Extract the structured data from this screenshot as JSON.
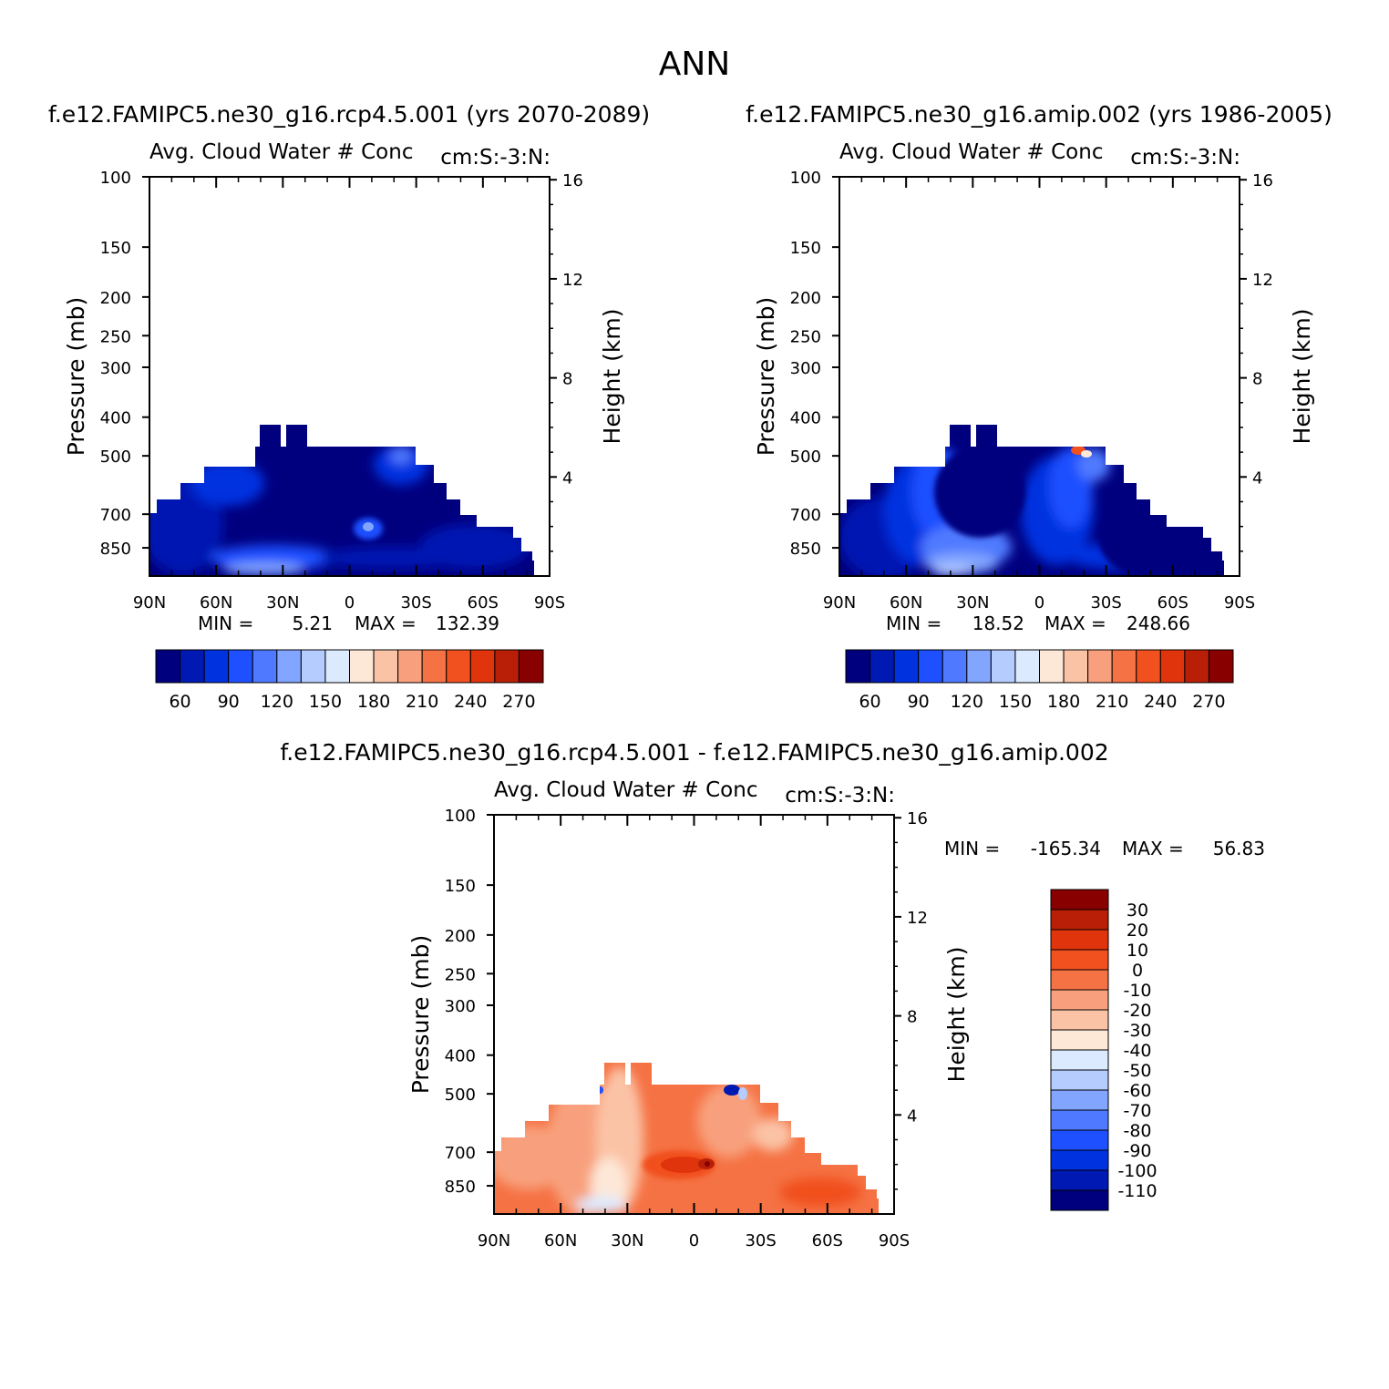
{
  "chart_data": {
    "type": "contour",
    "title": "ANN",
    "colors": {
      "abs": [
        "#00007f",
        "#0019b2",
        "#0032e0",
        "#1e50ff",
        "#4f7aff",
        "#82a5ff",
        "#b5ccff",
        "#dceaff",
        "#fde8d8",
        "#fbc3a6",
        "#f8a07d",
        "#f57244",
        "#f1501f",
        "#e0340d",
        "#b81f06",
        "#880000"
      ],
      "diff": [
        "#00007f",
        "#0019b2",
        "#0032e0",
        "#1e50ff",
        "#4f7aff",
        "#82a5ff",
        "#b5ccff",
        "#dceaff",
        "#fde8d8",
        "#fbc3a6",
        "#f8a07d",
        "#f57244",
        "#f1501f",
        "#e0340d",
        "#b81f06",
        "#880000"
      ]
    },
    "panels": [
      {
        "id": "model",
        "title": "f.e12.FAMIPC5.ne30_g16.rcp4.5.001 (yrs 2070-2089)",
        "left_label": "Avg. Cloud Water # Conc",
        "right_label": "cm:S:-3:N:",
        "ylabel": "Pressure (mb)",
        "y2label": "Height (km)",
        "pressure_ticks": [
          100,
          150,
          200,
          250,
          300,
          400,
          500,
          700,
          850
        ],
        "height_ticks": [
          16,
          12,
          8,
          4
        ],
        "x_ticks": [
          "90N",
          "60N",
          "30N",
          "0",
          "30S",
          "60S",
          "90S"
        ],
        "min_label": "MIN =",
        "min_value": "5.21",
        "max_label": "MAX =",
        "max_value": "132.39",
        "colorbar_labels": [
          "60",
          "90",
          "120",
          "150",
          "180",
          "210",
          "240",
          "270"
        ]
      },
      {
        "id": "obs",
        "title": "f.e12.FAMIPC5.ne30_g16.amip.002 (yrs 1986-2005)",
        "left_label": "Avg. Cloud Water # Conc",
        "right_label": "cm:S:-3:N:",
        "ylabel": "Pressure (mb)",
        "y2label": "Height (km)",
        "pressure_ticks": [
          100,
          150,
          200,
          250,
          300,
          400,
          500,
          700,
          850
        ],
        "height_ticks": [
          16,
          12,
          8,
          4
        ],
        "x_ticks": [
          "90N",
          "60N",
          "30N",
          "0",
          "30S",
          "60S",
          "90S"
        ],
        "min_label": "MIN =",
        "min_value": "18.52",
        "max_label": "MAX =",
        "max_value": "248.66",
        "colorbar_labels": [
          "60",
          "90",
          "120",
          "150",
          "180",
          "210",
          "240",
          "270"
        ]
      },
      {
        "id": "diff",
        "title": "f.e12.FAMIPC5.ne30_g16.rcp4.5.001 - f.e12.FAMIPC5.ne30_g16.amip.002",
        "left_label": "Avg. Cloud Water # Conc",
        "right_label": "cm:S:-3:N:",
        "ylabel": "Pressure (mb)",
        "y2label": "Height (km)",
        "pressure_ticks": [
          100,
          150,
          200,
          250,
          300,
          400,
          500,
          700,
          850
        ],
        "height_ticks": [
          16,
          12,
          8,
          4
        ],
        "x_ticks": [
          "90N",
          "60N",
          "30N",
          "0",
          "30S",
          "60S",
          "90S"
        ],
        "min_label": "MIN =",
        "min_value": "-165.34",
        "max_label": "MAX =",
        "max_value": "56.83",
        "colorbar_labels": [
          "30",
          "20",
          "10",
          "0",
          "-10",
          "-20",
          "-30",
          "-40",
          "-50",
          "-60",
          "-70",
          "-80",
          "-90",
          "-100",
          "-110"
        ]
      }
    ],
    "pressure_range_mb": [
      100,
      1000
    ],
    "latitude_range": [
      "90N",
      "90S"
    ],
    "data_top_pressure_mb": [
      {
        "lat": 90,
        "p": 660
      },
      {
        "lat": 85,
        "p": 620
      },
      {
        "lat": 75,
        "p": 550
      },
      {
        "lat": 65,
        "p": 520
      },
      {
        "lat": 45,
        "p": 460
      },
      {
        "lat": 40,
        "p": 400
      },
      {
        "lat": 30,
        "p": 400
      },
      {
        "lat": 20,
        "p": 460
      },
      {
        "lat": -30,
        "p": 460
      },
      {
        "lat": -40,
        "p": 520
      },
      {
        "lat": -50,
        "p": 580
      },
      {
        "lat": -60,
        "p": 660
      },
      {
        "lat": -70,
        "p": 700
      },
      {
        "lat": -80,
        "p": 790
      },
      {
        "lat": -87,
        "p": 850
      }
    ]
  }
}
